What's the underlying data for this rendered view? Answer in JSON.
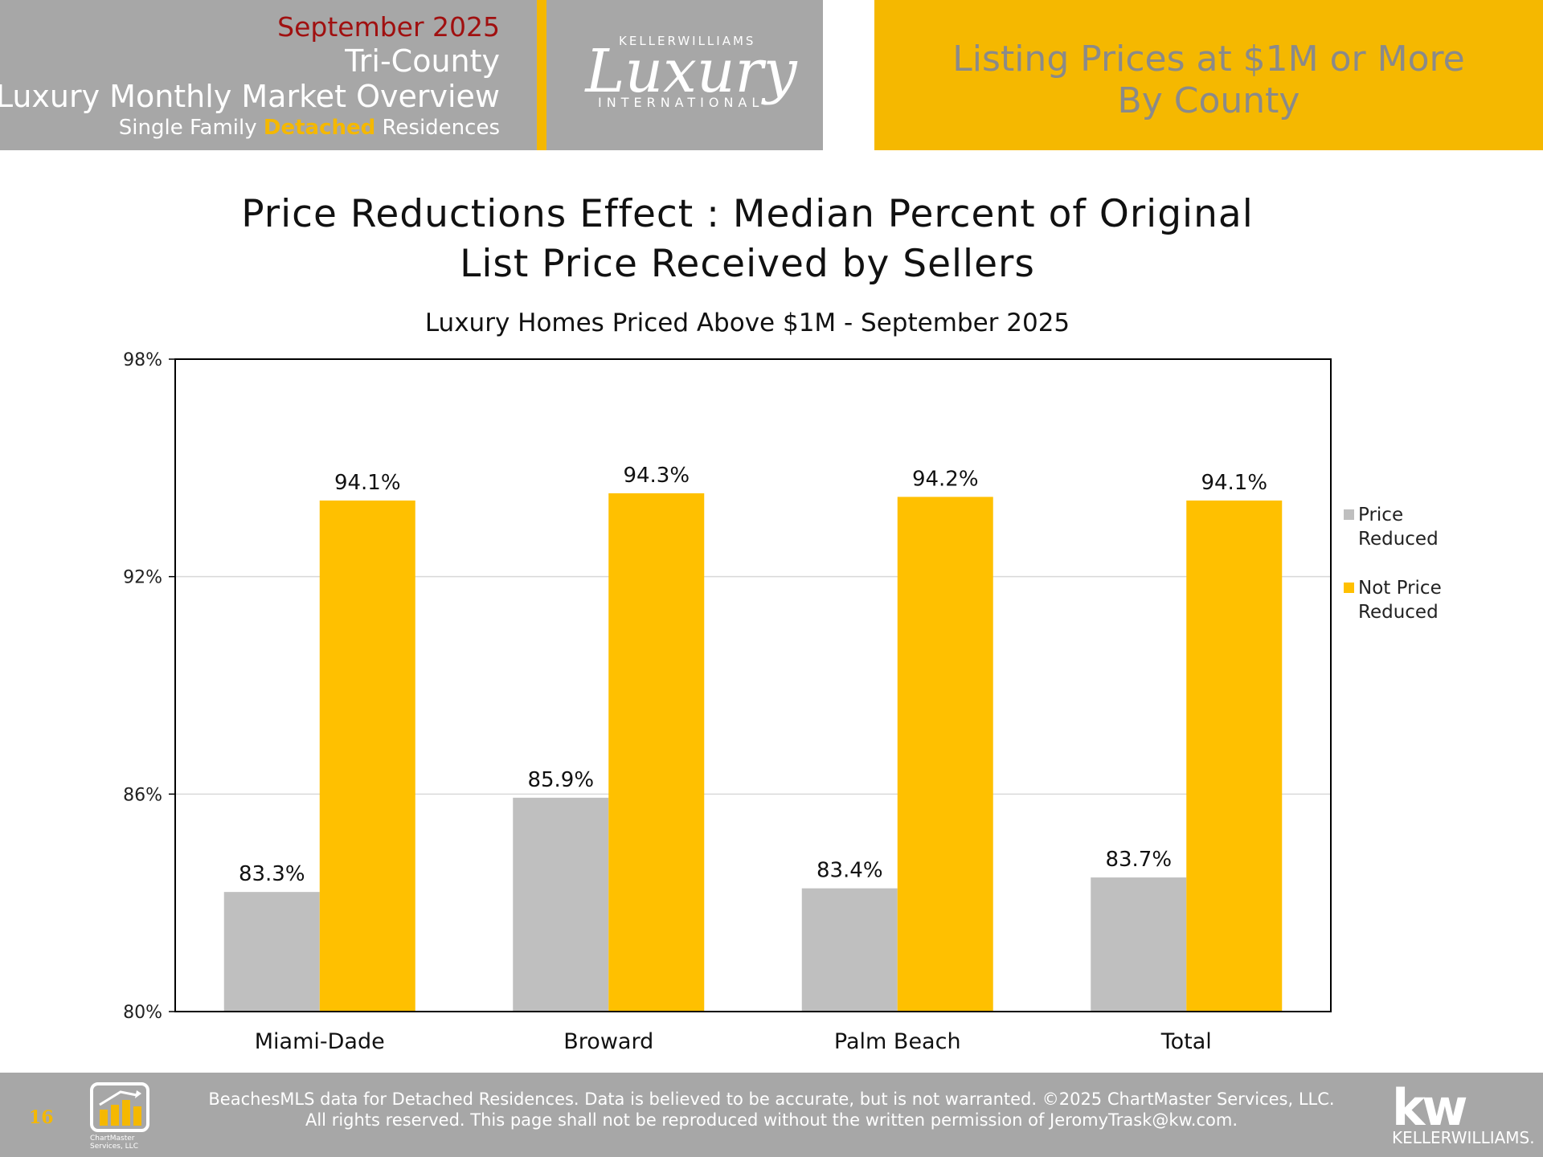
{
  "header": {
    "date": "September 2025",
    "region": "Tri-County",
    "overview": "Luxury Monthly Market Overview",
    "subtitle_pre": "Single Family ",
    "subtitle_accent": "Detached",
    "subtitle_post": " Residences",
    "logo_top": "KELLERWILLIAMS",
    "logo_script": "Luxury",
    "logo_bottom": "INTERNATIONAL",
    "page_heading_line1": "Listing Prices at $1M or More",
    "page_heading_line2": "By County"
  },
  "colors": {
    "gray": "#bfbfbf",
    "gold": "#ffc000",
    "header_gray": "#a7a7a7",
    "header_gold": "#f5b800"
  },
  "chart_data": {
    "type": "bar",
    "title_line1": "Price Reductions Effect : Median Percent of Original",
    "title_line2": "List Price Received by Sellers",
    "subtitle": "Luxury Homes Priced Above $1M - September 2025",
    "categories": [
      "Miami-Dade",
      "Broward",
      "Palm Beach",
      "Total"
    ],
    "series": [
      {
        "name": "Price Reduced",
        "legend_line1": "Price",
        "legend_line2": "Reduced",
        "values": [
          83.3,
          85.9,
          83.4,
          83.7
        ],
        "color": "#bfbfbf"
      },
      {
        "name": "Not Price Reduced",
        "legend_line1": "Not Price",
        "legend_line2": "Reduced",
        "values": [
          94.1,
          94.3,
          94.2,
          94.1
        ],
        "color": "#ffc000"
      }
    ],
    "yticks": [
      "98%",
      "92%",
      "86%",
      "80%"
    ],
    "ylim": [
      80,
      98
    ],
    "grid": true,
    "legend_position": "right"
  },
  "footer": {
    "page_number": "16",
    "logo_text_line1": "ChartMaster",
    "logo_text_line2": "Services, LLC",
    "line1": "BeachesMLS data for Detached Residences.  Data is believed to be accurate, but is not warranted.   ©2025  ChartMaster Services, LLC.",
    "line2": "All rights reserved. This page shall not be reproduced without the written permission of JeromyTrask@kw.com.",
    "kw_mark": "kw",
    "kw_name": "KELLERWILLIAMS."
  }
}
